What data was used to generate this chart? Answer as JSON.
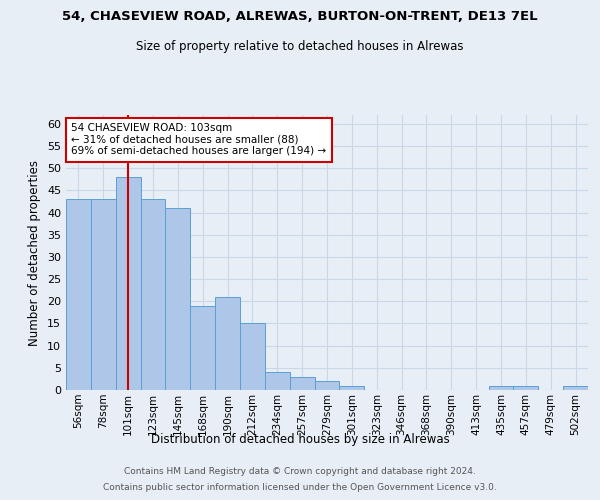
{
  "title1": "54, CHASEVIEW ROAD, ALREWAS, BURTON-ON-TRENT, DE13 7EL",
  "title2": "Size of property relative to detached houses in Alrewas",
  "xlabel": "Distribution of detached houses by size in Alrewas",
  "ylabel": "Number of detached properties",
  "footer1": "Contains HM Land Registry data © Crown copyright and database right 2024.",
  "footer2": "Contains public sector information licensed under the Open Government Licence v3.0.",
  "categories": [
    "56sqm",
    "78sqm",
    "101sqm",
    "123sqm",
    "145sqm",
    "168sqm",
    "190sqm",
    "212sqm",
    "234sqm",
    "257sqm",
    "279sqm",
    "301sqm",
    "323sqm",
    "346sqm",
    "368sqm",
    "390sqm",
    "413sqm",
    "435sqm",
    "457sqm",
    "479sqm",
    "502sqm"
  ],
  "values": [
    43,
    43,
    48,
    43,
    41,
    19,
    21,
    15,
    4,
    3,
    2,
    1,
    0,
    0,
    0,
    0,
    0,
    1,
    1,
    0,
    1
  ],
  "bar_color": "#aec6e8",
  "bar_edge_color": "#5a9fd4",
  "vline_x_index": 2,
  "vline_color": "#cc0000",
  "annotation_text": "54 CHASEVIEW ROAD: 103sqm\n← 31% of detached houses are smaller (88)\n69% of semi-detached houses are larger (194) →",
  "annotation_box_color": "#ffffff",
  "annotation_box_edge": "#cc0000",
  "ylim": [
    0,
    62
  ],
  "yticks": [
    0,
    5,
    10,
    15,
    20,
    25,
    30,
    35,
    40,
    45,
    50,
    55,
    60
  ],
  "grid_color": "#c8d8e8",
  "background_color": "#e8eef5",
  "plot_bg_color": "#e8eef5"
}
